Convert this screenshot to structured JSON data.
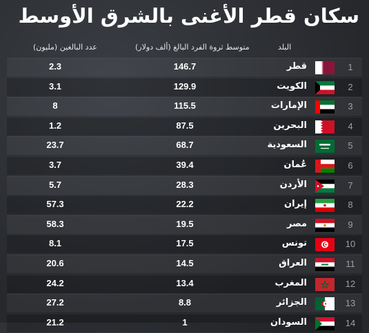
{
  "title": "سكان قطر الأغنى بالشرق الأوسط",
  "headers": {
    "country": "البلد",
    "wealth": "متوسط ثروة الفرد البالغ (ألف دولار)",
    "adults": "عدد البالغين (مليون)"
  },
  "chart_data": {
    "type": "table",
    "title": "سكان قطر الأغنى بالشرق الأوسط",
    "columns": [
      "البلد",
      "متوسط ثروة الفرد البالغ (ألف دولار)",
      "عدد البالغين (مليون)"
    ],
    "rows": [
      {
        "rank": "1",
        "country": "قطر",
        "flag": "qatar-flag",
        "wealth": "146.7",
        "adults": "2.3"
      },
      {
        "rank": "2",
        "country": "الكويت",
        "flag": "kuwait-flag",
        "wealth": "129.9",
        "adults": "3.1"
      },
      {
        "rank": "3",
        "country": "الإمارات",
        "flag": "uae-flag",
        "wealth": "115.5",
        "adults": "8"
      },
      {
        "rank": "4",
        "country": "البحرين",
        "flag": "bahrain-flag",
        "wealth": "87.5",
        "adults": "1.2"
      },
      {
        "rank": "5",
        "country": "السعودية",
        "flag": "saudi-flag",
        "wealth": "68.7",
        "adults": "23.7"
      },
      {
        "rank": "6",
        "country": "عُمان",
        "flag": "oman-flag",
        "wealth": "39.4",
        "adults": "3.7"
      },
      {
        "rank": "7",
        "country": "الأردن",
        "flag": "jordan-flag",
        "wealth": "28.3",
        "adults": "5.7"
      },
      {
        "rank": "8",
        "country": "إيران",
        "flag": "iran-flag",
        "wealth": "22.2",
        "adults": "57.3"
      },
      {
        "rank": "9",
        "country": "مصر",
        "flag": "egypt-flag",
        "wealth": "19.5",
        "adults": "58.3"
      },
      {
        "rank": "10",
        "country": "تونس",
        "flag": "tunisia-flag",
        "wealth": "17.5",
        "adults": "8.1"
      },
      {
        "rank": "11",
        "country": "العراق",
        "flag": "iraq-flag",
        "wealth": "14.5",
        "adults": "20.6"
      },
      {
        "rank": "12",
        "country": "المغرب",
        "flag": "morocco-flag",
        "wealth": "13.4",
        "adults": "24.2"
      },
      {
        "rank": "13",
        "country": "الجزائر",
        "flag": "algeria-flag",
        "wealth": "8.8",
        "adults": "27.2"
      },
      {
        "rank": "14",
        "country": "السودان",
        "flag": "sudan-flag",
        "wealth": "1",
        "adults": "21.2"
      }
    ]
  }
}
